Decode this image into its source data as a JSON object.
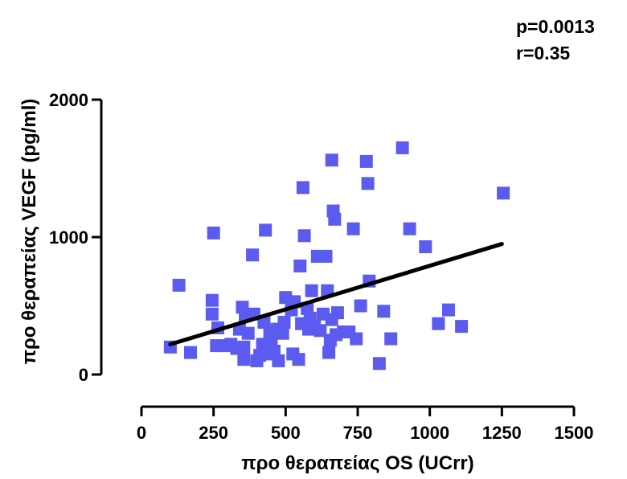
{
  "annotations": {
    "p": "p=0.0013",
    "r": "r=0.35"
  },
  "colors": {
    "points": "#5b5bf0",
    "fit_line": "#000000",
    "axes": "#000000"
  },
  "chart_data": {
    "type": "scatter",
    "title": "",
    "xlabel": "προ θεραπείας OS (UCrr)",
    "ylabel": "προ θεραπείας VEGF (pg/ml)",
    "xlim": [
      0,
      1500
    ],
    "ylim": [
      0,
      2000
    ],
    "xticks": [
      0,
      250,
      500,
      750,
      1000,
      1250,
      1500
    ],
    "yticks": [
      0,
      1000,
      2000
    ],
    "grid": false,
    "marker": "square",
    "points": [
      [
        100,
        200
      ],
      [
        130,
        650
      ],
      [
        170,
        160
      ],
      [
        245,
        540
      ],
      [
        245,
        440
      ],
      [
        250,
        1030
      ],
      [
        260,
        210
      ],
      [
        265,
        340
      ],
      [
        290,
        210
      ],
      [
        310,
        220
      ],
      [
        330,
        190
      ],
      [
        340,
        330
      ],
      [
        350,
        490
      ],
      [
        355,
        200
      ],
      [
        355,
        110
      ],
      [
        360,
        430
      ],
      [
        370,
        300
      ],
      [
        385,
        870
      ],
      [
        390,
        440
      ],
      [
        400,
        100
      ],
      [
        410,
        140
      ],
      [
        420,
        220
      ],
      [
        425,
        380
      ],
      [
        430,
        1050
      ],
      [
        440,
        150
      ],
      [
        445,
        310
      ],
      [
        450,
        260
      ],
      [
        460,
        170
      ],
      [
        470,
        330
      ],
      [
        475,
        100
      ],
      [
        490,
        300
      ],
      [
        495,
        380
      ],
      [
        500,
        560
      ],
      [
        520,
        470
      ],
      [
        525,
        150
      ],
      [
        530,
        530
      ],
      [
        545,
        110
      ],
      [
        550,
        790
      ],
      [
        555,
        370
      ],
      [
        560,
        1360
      ],
      [
        565,
        1010
      ],
      [
        575,
        480
      ],
      [
        580,
        330
      ],
      [
        585,
        410
      ],
      [
        590,
        610
      ],
      [
        600,
        360
      ],
      [
        610,
        860
      ],
      [
        620,
        320
      ],
      [
        630,
        440
      ],
      [
        640,
        860
      ],
      [
        645,
        610
      ],
      [
        650,
        160
      ],
      [
        655,
        250
      ],
      [
        660,
        1560
      ],
      [
        660,
        400
      ],
      [
        665,
        1190
      ],
      [
        670,
        1130
      ],
      [
        675,
        290
      ],
      [
        680,
        450
      ],
      [
        700,
        310
      ],
      [
        720,
        310
      ],
      [
        735,
        1060
      ],
      [
        745,
        260
      ],
      [
        760,
        500
      ],
      [
        780,
        1550
      ],
      [
        785,
        1390
      ],
      [
        790,
        680
      ],
      [
        825,
        80
      ],
      [
        840,
        460
      ],
      [
        865,
        260
      ],
      [
        905,
        1650
      ],
      [
        930,
        1060
      ],
      [
        985,
        930
      ],
      [
        1030,
        370
      ],
      [
        1065,
        470
      ],
      [
        1110,
        350
      ],
      [
        1255,
        1320
      ]
    ],
    "fit_line": {
      "x": [
        100,
        1250
      ],
      "y": [
        220,
        950
      ]
    }
  }
}
